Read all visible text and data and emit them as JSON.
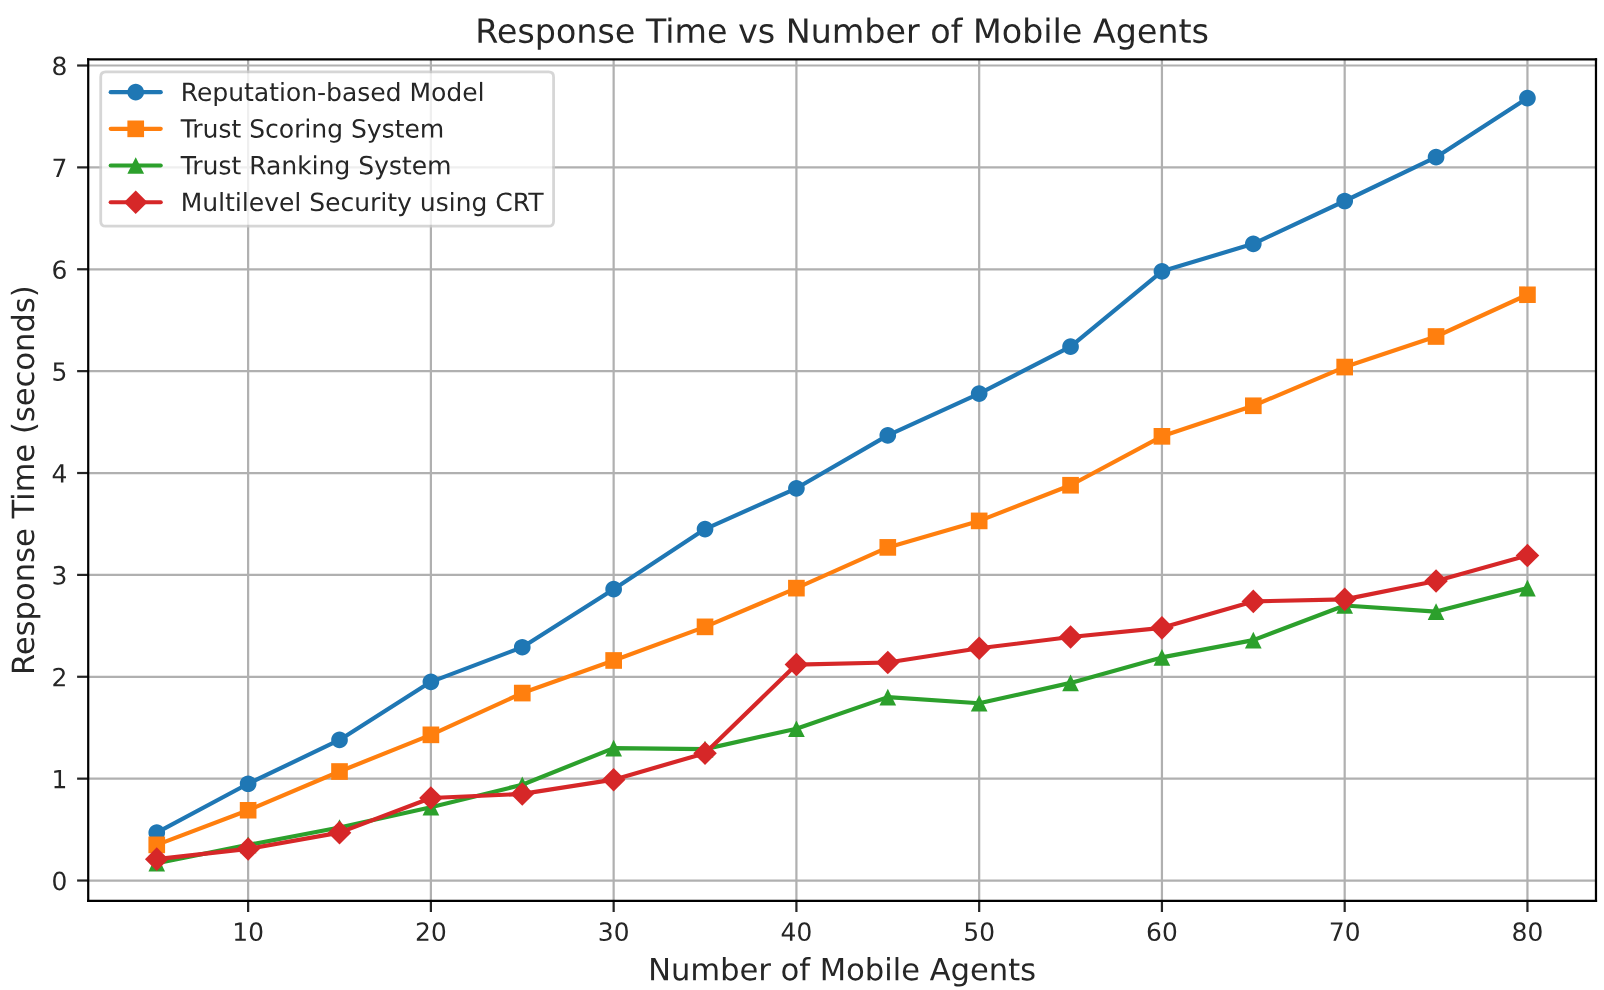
{
  "chart_data": {
    "type": "line",
    "title": "Response Time vs Number of Mobile Agents",
    "xlabel": "Number of Mobile Agents",
    "ylabel": "Response Time (seconds)",
    "x": [
      5,
      10,
      15,
      20,
      25,
      30,
      35,
      40,
      45,
      50,
      55,
      60,
      65,
      70,
      75,
      80
    ],
    "series": [
      {
        "name": "Reputation-based Model",
        "color": "#1f77b4",
        "marker": "circle",
        "values": [
          0.47,
          0.95,
          1.38,
          1.95,
          2.29,
          2.86,
          3.45,
          3.85,
          4.37,
          4.78,
          5.24,
          5.98,
          6.25,
          6.67,
          7.1,
          7.68
        ]
      },
      {
        "name": "Trust Scoring System",
        "color": "#ff7f0e",
        "marker": "square",
        "values": [
          0.35,
          0.69,
          1.07,
          1.43,
          1.84,
          2.16,
          2.49,
          2.87,
          3.27,
          3.53,
          3.88,
          4.36,
          4.66,
          5.04,
          5.34,
          5.75
        ]
      },
      {
        "name": "Trust Ranking System",
        "color": "#2ca02c",
        "marker": "triangle",
        "values": [
          0.17,
          0.35,
          0.52,
          0.72,
          0.94,
          1.3,
          1.29,
          1.49,
          1.8,
          1.74,
          1.94,
          2.19,
          2.36,
          2.7,
          2.64,
          2.87
        ]
      },
      {
        "name": "Multilevel Security using CRT",
        "color": "#d62728",
        "marker": "diamond",
        "values": [
          0.21,
          0.31,
          0.47,
          0.81,
          0.85,
          0.99,
          1.25,
          2.12,
          2.14,
          2.28,
          2.39,
          2.48,
          2.74,
          2.76,
          2.94,
          3.19
        ]
      }
    ],
    "xlim": [
      1.25,
      83.75
    ],
    "xticks": [
      10,
      20,
      30,
      40,
      50,
      60,
      70,
      80
    ],
    "ylim": [
      -0.2,
      8.06
    ],
    "yticks": [
      0,
      1,
      2,
      3,
      4,
      5,
      6,
      7,
      8
    ],
    "grid": true,
    "legend": "top left",
    "line_style": "solid"
  }
}
